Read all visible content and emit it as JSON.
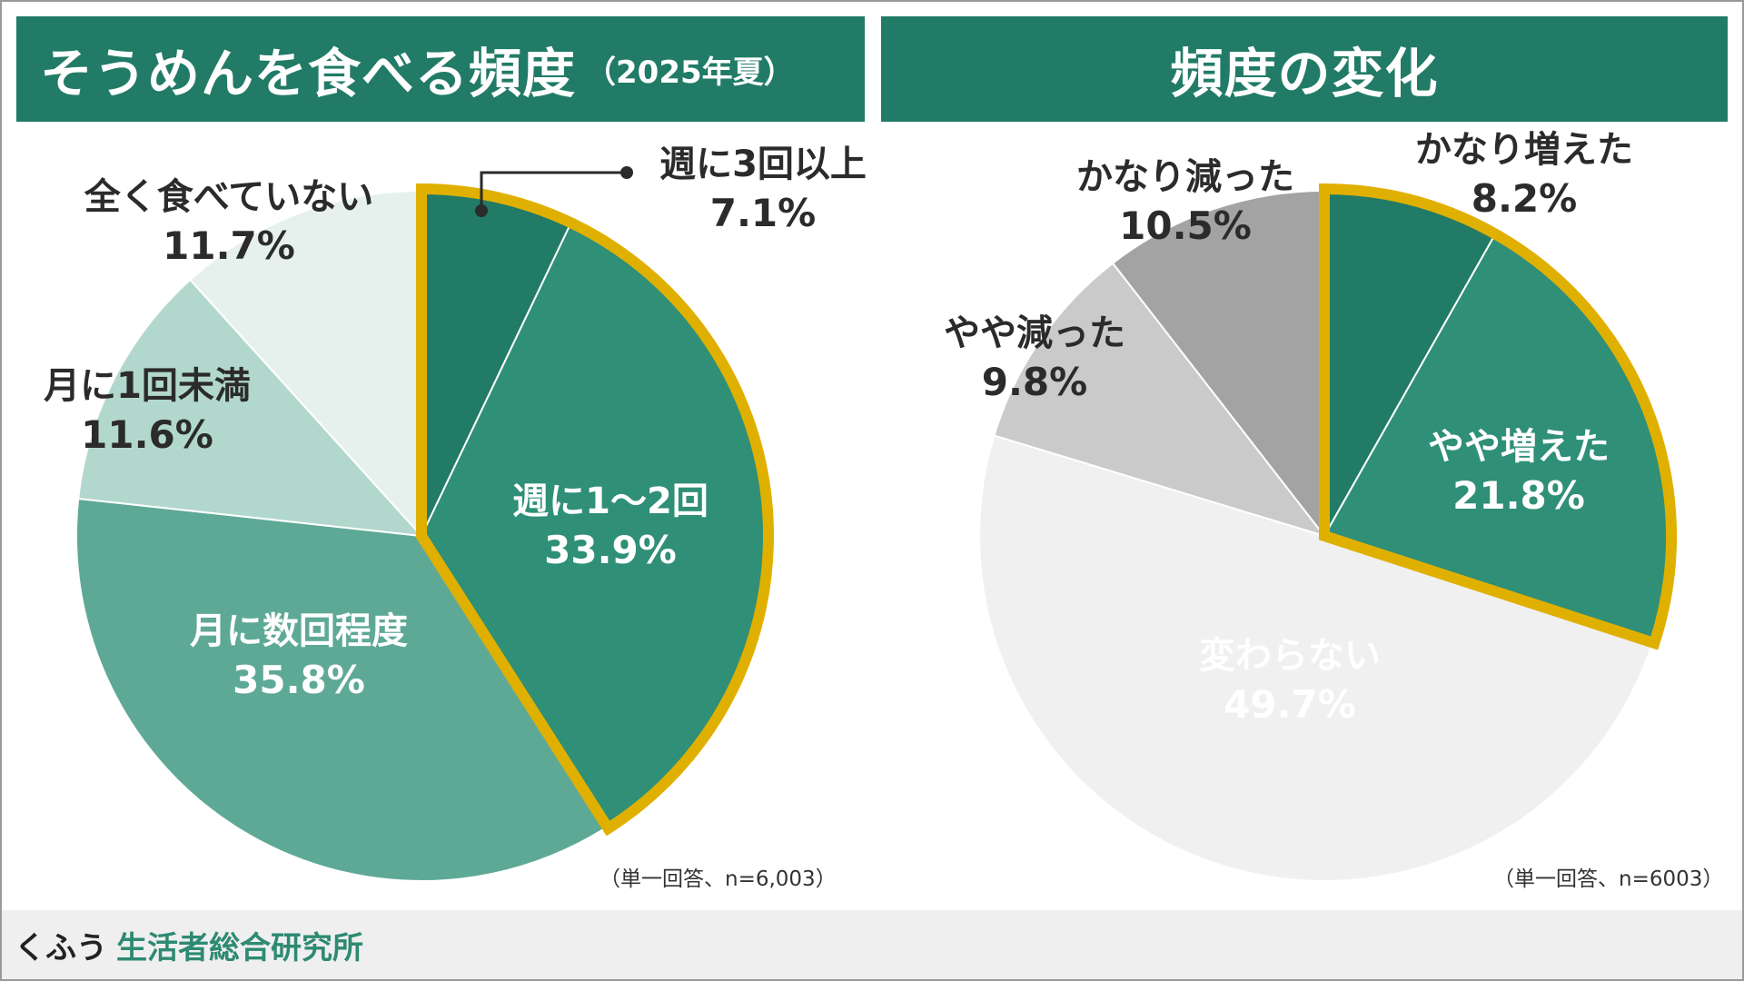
{
  "left_panel": {
    "title": "そうめんを食べる頻度",
    "subtitle": "（2025年夏）",
    "note": "（単一回答、n=6,003）"
  },
  "right_panel": {
    "title": "頻度の変化",
    "note": "（単一回答、n=6003）"
  },
  "footer": {
    "brand_kana": "くふう",
    "brand_name": "生活者総合研究所"
  },
  "colors": {
    "header_bg": "#217b66",
    "highlight_outline": "#e0b000"
  },
  "chart_data": [
    {
      "type": "pie",
      "title": "そうめんを食べる頻度",
      "start": "12 o'clock, clockwise",
      "highlight_outline": [
        "週に3回以上",
        "週に1～2回"
      ],
      "slices": [
        {
          "label": "週に3回以上",
          "value": 7.1,
          "display": "7.1%",
          "color": "#217b66",
          "label_position": "outside"
        },
        {
          "label": "週に1～2回",
          "value": 33.9,
          "display": "33.9%",
          "color": "#2f8f77",
          "label_position": "inside"
        },
        {
          "label": "月に数回程度",
          "value": 35.8,
          "display": "35.8%",
          "color": "#5ea996",
          "label_position": "inside"
        },
        {
          "label": "月に1回未満",
          "value": 11.6,
          "display": "11.6%",
          "color": "#b2d8cd",
          "label_position": "outside"
        },
        {
          "label": "全く食べていない",
          "value": 11.7,
          "display": "11.7%",
          "color": "#e6f1ee",
          "label_position": "outside"
        }
      ]
    },
    {
      "type": "pie",
      "title": "頻度の変化",
      "start": "12 o'clock, clockwise",
      "highlight_outline": [
        "かなり増えた",
        "やや増えた"
      ],
      "slices": [
        {
          "label": "かなり増えた",
          "value": 8.2,
          "display": "8.2%",
          "color": "#217b66",
          "label_position": "outside"
        },
        {
          "label": "やや増えた",
          "value": 21.8,
          "display": "21.8%",
          "color": "#2f8f77",
          "label_position": "inside"
        },
        {
          "label": "変わらない",
          "value": 49.7,
          "display": "49.7%",
          "color": "#f0f0f0",
          "label_position": "inside"
        },
        {
          "label": "やや減った",
          "value": 9.8,
          "display": "9.8%",
          "color": "#cacaca",
          "label_position": "outside"
        },
        {
          "label": "かなり減った",
          "value": 10.5,
          "display": "10.5%",
          "color": "#a3a3a3",
          "label_position": "outside"
        }
      ]
    }
  ]
}
